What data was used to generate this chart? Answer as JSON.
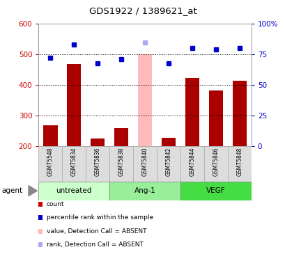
{
  "title": "GDS1922 / 1389621_at",
  "samples": [
    "GSM75548",
    "GSM75834",
    "GSM75836",
    "GSM75838",
    "GSM75840",
    "GSM75842",
    "GSM75844",
    "GSM75846",
    "GSM75848"
  ],
  "bar_values": [
    268,
    468,
    224,
    258,
    500,
    228,
    422,
    382,
    414
  ],
  "bar_colors": [
    "#aa0000",
    "#aa0000",
    "#aa0000",
    "#aa0000",
    "#ffbbbb",
    "#aa0000",
    "#aa0000",
    "#aa0000",
    "#aa0000"
  ],
  "rank_values": [
    488,
    532,
    470,
    483,
    538,
    470,
    520,
    515,
    521
  ],
  "rank_colors": [
    "#0000cc",
    "#0000cc",
    "#0000cc",
    "#0000cc",
    "#aaaaee",
    "#0000cc",
    "#0000cc",
    "#0000cc",
    "#0000cc"
  ],
  "ylim_left": [
    200,
    600
  ],
  "yticks_left": [
    200,
    300,
    400,
    500,
    600
  ],
  "yticks_right_vals": [
    0,
    25,
    50,
    75,
    100
  ],
  "ytick_labels_right": [
    "0",
    "25",
    "50",
    "75",
    "100%"
  ],
  "groups": [
    {
      "label": "untreated",
      "indices": [
        0,
        1,
        2
      ],
      "color": "#ccffcc"
    },
    {
      "label": "Ang-1",
      "indices": [
        3,
        4,
        5
      ],
      "color": "#99ee99"
    },
    {
      "label": "VEGF",
      "indices": [
        6,
        7,
        8
      ],
      "color": "#44dd44"
    }
  ],
  "agent_label": "agent",
  "legend_items": [
    {
      "label": "count",
      "color": "#cc0000"
    },
    {
      "label": "percentile rank within the sample",
      "color": "#0000cc"
    },
    {
      "label": "value, Detection Call = ABSENT",
      "color": "#ffbbbb"
    },
    {
      "label": "rank, Detection Call = ABSENT",
      "color": "#aaaaee"
    }
  ],
  "bar_width": 0.6,
  "tick_color_left": "#cc0000",
  "tick_color_right": "#0000cc",
  "sample_box_color": "#dddddd",
  "sample_box_edge": "#aaaaaa"
}
